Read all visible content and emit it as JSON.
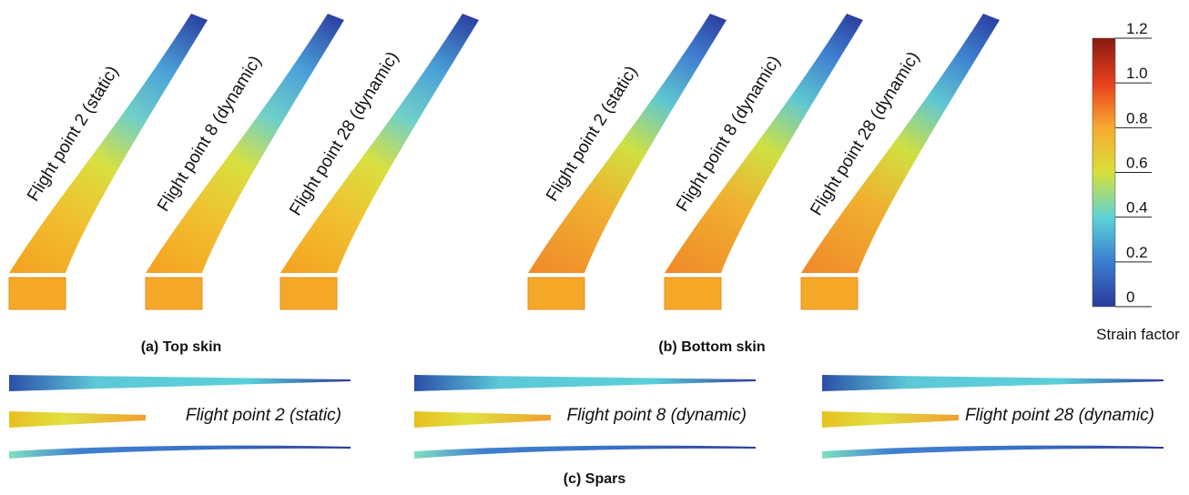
{
  "panels": [
    {
      "caption": "(a) Top skin",
      "labels": [
        "Flight point 2 (static)",
        "Flight point 8 (dynamic)",
        "Flight point 28 (dynamic)"
      ]
    },
    {
      "caption": "(b) Bottom skin",
      "labels": [
        "Flight point 2 (static)",
        "Flight point 8 (dynamic)",
        "Flight point 28 (dynamic)"
      ]
    }
  ],
  "spars": {
    "caption": "(c) Spars",
    "labels": [
      "Flight point 2 (static)",
      "Flight point 8 (dynamic)",
      "Flight point 28 (dynamic)"
    ]
  },
  "colorbar": {
    "title": "Strain factor",
    "ticks": [
      "1.2",
      "1.0",
      "0.8",
      "0.6",
      "0.4",
      "0.2",
      "0"
    ]
  }
}
